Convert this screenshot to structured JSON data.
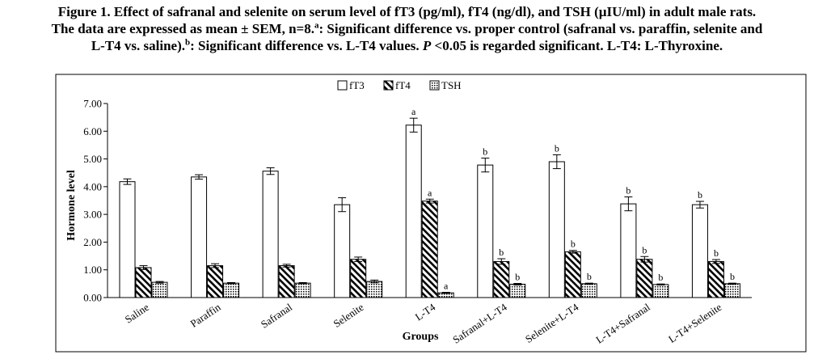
{
  "caption": {
    "line1": "Figure 1. Effect of safranal and selenite on serum level of fT3 (pg/ml), fT4 (ng/dl), and TSH (µIU/ml)   in adult male rats.",
    "line2": "The data are expressed as mean ± SEM, n=8.",
    "sup_a": "a",
    "line2b": ": Significant difference vs. proper control (safranal vs. paraffin, selenite and",
    "line3a": "L-T4 vs. saline).",
    "sup_b": "b",
    "line3b": ": Significant difference vs. L-T4 values. ",
    "p_symbol": "P",
    "line3c": " <0.05 is regarded  significant. L-T4: L-Thyroxine."
  },
  "chart_data": {
    "type": "bar",
    "xlabel": "Groups",
    "ylabel": "Hormone level",
    "ylim": [
      0,
      7
    ],
    "yticks": [
      "0.00",
      "1.00",
      "2.00",
      "3.00",
      "4.00",
      "5.00",
      "6.00",
      "7.00"
    ],
    "grid": false,
    "legend_position": "top-center",
    "categories": [
      "Saline",
      "Paraffin",
      "Safranal",
      "Selenite",
      "L-T4",
      "Safranal+L-T4",
      "Selenite+L-T4",
      "L-T4+Safranal",
      "L-T4+Selenite"
    ],
    "series": [
      {
        "name": "fT3",
        "fill": "white",
        "values": [
          4.18,
          4.35,
          4.56,
          3.35,
          6.22,
          4.78,
          4.9,
          3.38,
          3.35
        ],
        "errors": [
          0.1,
          0.08,
          0.12,
          0.25,
          0.25,
          0.25,
          0.25,
          0.25,
          0.12
        ],
        "annotations": [
          "",
          "",
          "",
          "",
          "a",
          "b",
          "b",
          "b",
          "b"
        ]
      },
      {
        "name": "fT4",
        "fill": "diagonal-hatch",
        "values": [
          1.08,
          1.15,
          1.15,
          1.38,
          3.48,
          1.3,
          1.65,
          1.38,
          1.3
        ],
        "errors": [
          0.07,
          0.07,
          0.05,
          0.08,
          0.07,
          0.1,
          0.05,
          0.1,
          0.07
        ],
        "annotations": [
          "",
          "",
          "",
          "",
          "a",
          "b",
          "b",
          "b",
          "b"
        ]
      },
      {
        "name": "TSH",
        "fill": "dotted",
        "values": [
          0.55,
          0.52,
          0.52,
          0.58,
          0.17,
          0.48,
          0.5,
          0.47,
          0.5
        ],
        "errors": [
          0.03,
          0.02,
          0.02,
          0.05,
          0.02,
          0.03,
          0.02,
          0.02,
          0.02
        ],
        "annotations": [
          "",
          "",
          "",
          "",
          "a",
          "b",
          "b",
          "b",
          "b"
        ]
      }
    ],
    "colors": {
      "stroke": "#000000",
      "background": "#ffffff"
    }
  }
}
